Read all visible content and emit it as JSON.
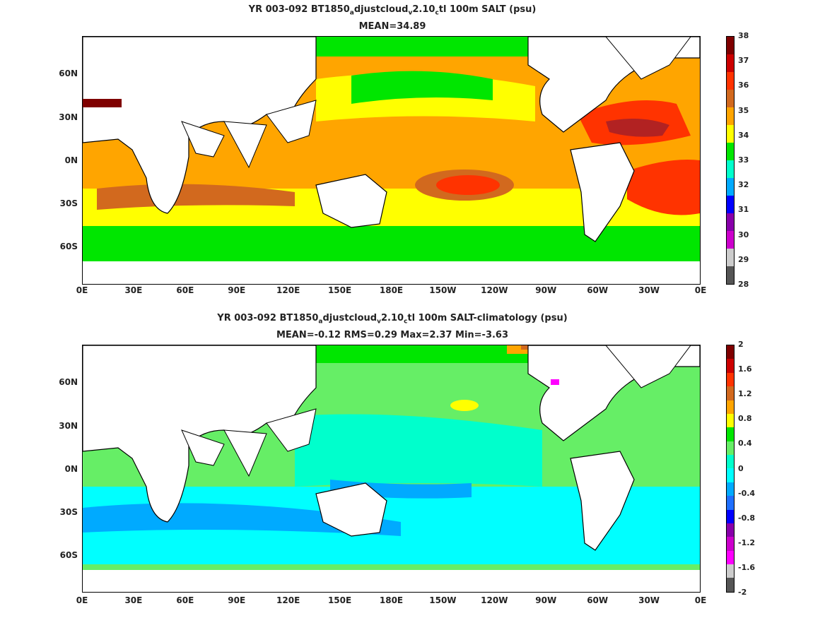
{
  "top": {
    "title_line1_parts": [
      "YR 003-092 BT1850",
      "a",
      "djustcloud",
      "v",
      "2.10",
      "c",
      "tl 100m SALT (psu)"
    ],
    "title_line2": "MEAN=34.89",
    "colorbar_labels": [
      "38",
      "37",
      "36",
      "35",
      "34",
      "33",
      "32",
      "31",
      "30",
      "29",
      "28"
    ],
    "colorbar_colors": [
      "#7f0000",
      "#cc0000",
      "#ff3300",
      "#d2691e",
      "#ffa500",
      "#ffff00",
      "#00e600",
      "#00ffcc",
      "#00aaff",
      "#0000ff",
      "#8800aa",
      "#cc00cc",
      "#cccccc",
      "#555555"
    ]
  },
  "bottom": {
    "title_line1_parts": [
      "YR 003-092 BT1850",
      "a",
      "djustcloud",
      "v",
      "2.10",
      "c",
      "tl 100m SALT-climatology (psu)"
    ],
    "title_line2": "MEAN=-0.12   RMS=0.29   Max=2.37   Min=-3.63",
    "colorbar_labels": [
      "2",
      "1.6",
      "1.2",
      "0.8",
      "0.4",
      "0",
      "-0.4",
      "-0.8",
      "-1.2",
      "-1.6",
      "-2"
    ],
    "colorbar_colors": [
      "#7f0000",
      "#cc0000",
      "#ff3300",
      "#d2691e",
      "#ffa500",
      "#ffff00",
      "#00e600",
      "#66ee66",
      "#00ffcc",
      "#00ffff",
      "#00aaff",
      "#1f6fff",
      "#0000ff",
      "#8800aa",
      "#cc00cc",
      "#ff00ff",
      "#cccccc",
      "#555555"
    ]
  },
  "axes": {
    "ylabels": [
      "60N",
      "30N",
      "0N",
      "30S",
      "60S"
    ],
    "xlabels": [
      "0E",
      "30E",
      "60E",
      "90E",
      "120E",
      "150E",
      "180E",
      "150W",
      "120W",
      "90W",
      "60W",
      "30W",
      "0E"
    ]
  }
}
